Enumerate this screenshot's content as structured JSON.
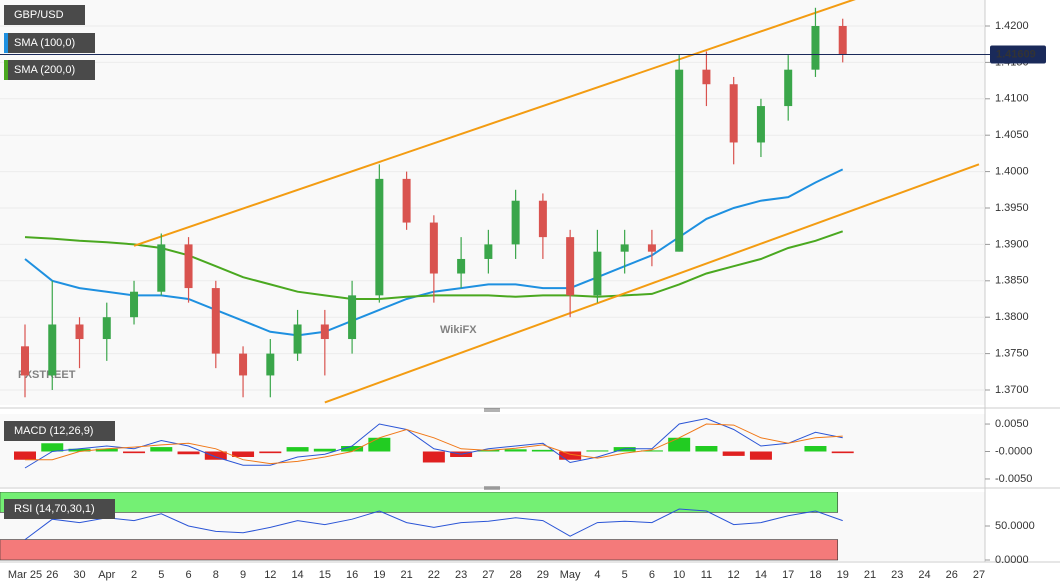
{
  "chart_data": [
    {
      "type": "candlestick",
      "title": "GBP/USD",
      "categories": [
        "Mar 25",
        "26",
        "30",
        "Apr",
        "2",
        "5",
        "6",
        "8",
        "9",
        "12",
        "14",
        "15",
        "16",
        "19",
        "21",
        "22",
        "23",
        "27",
        "28",
        "29",
        "May",
        "4",
        "5",
        "6",
        "10",
        "11",
        "12",
        "14",
        "17",
        "18",
        "19",
        "21",
        "23",
        "24",
        "26",
        "27"
      ],
      "open": [
        1.376,
        1.372,
        1.379,
        1.377,
        1.38,
        1.3835,
        1.39,
        1.384,
        1.375,
        1.372,
        1.375,
        1.379,
        1.377,
        1.383,
        1.399,
        1.393,
        1.386,
        1.388,
        1.39,
        1.396,
        1.391,
        1.383,
        1.389,
        1.39,
        1.389,
        1.414,
        1.412,
        1.404,
        1.409,
        1.414,
        1.42,
        null,
        null,
        null,
        null,
        null
      ],
      "high": [
        1.379,
        1.385,
        1.38,
        1.382,
        1.385,
        1.3915,
        1.391,
        1.385,
        1.376,
        1.377,
        1.381,
        1.381,
        1.385,
        1.401,
        1.4,
        1.394,
        1.391,
        1.392,
        1.3975,
        1.397,
        1.392,
        1.392,
        1.392,
        1.392,
        1.416,
        1.4165,
        1.413,
        1.41,
        1.416,
        1.4225,
        1.421,
        null,
        null,
        null,
        null,
        null
      ],
      "low": [
        1.369,
        1.37,
        1.373,
        1.374,
        1.379,
        1.383,
        1.382,
        1.373,
        1.369,
        1.369,
        1.374,
        1.372,
        1.375,
        1.382,
        1.392,
        1.382,
        1.384,
        1.386,
        1.388,
        1.388,
        1.38,
        1.382,
        1.386,
        1.387,
        1.389,
        1.409,
        1.401,
        1.402,
        1.407,
        1.413,
        1.415,
        null,
        null,
        null,
        null,
        null
      ],
      "close": [
        1.372,
        1.379,
        1.377,
        1.38,
        1.3835,
        1.39,
        1.384,
        1.375,
        1.372,
        1.375,
        1.379,
        1.377,
        1.383,
        1.399,
        1.393,
        1.386,
        1.388,
        1.39,
        1.396,
        1.391,
        1.383,
        1.389,
        1.39,
        1.389,
        1.414,
        1.412,
        1.404,
        1.409,
        1.414,
        1.42,
        1.4161,
        null,
        null,
        null,
        null,
        null
      ],
      "up_color": "#3aa64a",
      "down_color": "#d9534f",
      "series": [
        {
          "name": "SMA (100,0)",
          "color": "#1e90e0",
          "values": [
            1.388,
            1.385,
            1.384,
            1.3835,
            1.383,
            1.383,
            1.3825,
            1.381,
            1.3795,
            1.378,
            1.3775,
            1.378,
            1.3795,
            1.381,
            1.3825,
            1.3835,
            1.384,
            1.3845,
            1.3845,
            1.384,
            1.384,
            1.3855,
            1.387,
            1.3885,
            1.391,
            1.3935,
            1.395,
            1.396,
            1.3965,
            1.3985,
            1.4003,
            null,
            null,
            null,
            null,
            null
          ]
        },
        {
          "name": "SMA (200,0)",
          "color": "#4aa820",
          "values": [
            1.391,
            1.3908,
            1.3905,
            1.3903,
            1.39,
            1.3895,
            1.3885,
            1.387,
            1.3855,
            1.3845,
            1.3835,
            1.383,
            1.3825,
            1.3825,
            1.3828,
            1.383,
            1.383,
            1.383,
            1.3828,
            1.383,
            1.383,
            1.3828,
            1.383,
            1.3832,
            1.3845,
            1.386,
            1.387,
            1.388,
            1.3895,
            1.3905,
            1.3918,
            null,
            null,
            null,
            null,
            null
          ]
        }
      ],
      "trendlines": [
        {
          "color": "#f39c12",
          "x": [
            4,
            35
          ],
          "y": [
            1.3898,
            1.4295
          ]
        },
        {
          "color": "#f39c12",
          "x": [
            11,
            35
          ],
          "y": [
            1.3683,
            1.401
          ]
        }
      ],
      "last_price": 1.41609,
      "watermarks": [
        "FXSTREET",
        "WikiFX"
      ],
      "ylim": [
        1.36794,
        1.42357
      ],
      "yticks": [
        {
          "value": 1.37,
          "label": "1.3700"
        },
        {
          "value": 1.375,
          "label": "1.3750"
        },
        {
          "value": 1.38,
          "label": "1.3800"
        },
        {
          "value": 1.385,
          "label": "1.3850"
        },
        {
          "value": 1.39,
          "label": "1.3900"
        },
        {
          "value": 1.395,
          "label": "1.3950"
        },
        {
          "value": 1.4,
          "label": "1.4000"
        },
        {
          "value": 1.405,
          "label": "1.4050"
        },
        {
          "value": 1.41,
          "label": "1.4100"
        },
        {
          "value": 1.415,
          "label": "1.4150"
        },
        {
          "value": 1.42,
          "label": "1.4200"
        }
      ]
    },
    {
      "type": "combo",
      "title": "MACD (12,26,9)",
      "series": [
        {
          "color": "#2b55d6",
          "values": [
            -0.003,
            0.0,
            0.0005,
            0.001,
            0.0005,
            0.002,
            0.001,
            -0.001,
            -0.0025,
            -0.0025,
            -0.001,
            -0.0005,
            0.001,
            0.005,
            0.004,
            0.0005,
            -0.0005,
            0.0005,
            0.001,
            0.0015,
            -0.002,
            -0.001,
            0.0005,
            0.0005,
            0.005,
            0.006,
            0.004,
            0.001,
            0.0015,
            0.0035,
            0.0025,
            null,
            null,
            null,
            null,
            null
          ]
        },
        {
          "color": "#f07818",
          "values": [
            -0.0015,
            -0.0015,
            0.0,
            0.0005,
            0.0008,
            0.0012,
            0.0015,
            0.0005,
            -0.0015,
            -0.0022,
            -0.0018,
            -0.001,
            0.0,
            0.0025,
            0.004,
            0.0025,
            0.0005,
            0.0002,
            0.0006,
            0.0012,
            -0.0005,
            -0.0012,
            -0.0003,
            0.0003,
            0.0025,
            0.005,
            0.0048,
            0.0025,
            0.0015,
            0.0025,
            0.0028,
            null,
            null,
            null,
            null,
            null
          ]
        }
      ],
      "histogram": [
        -0.0015,
        0.0015,
        0.0005,
        0.0005,
        -0.0003,
        0.0008,
        -0.0005,
        -0.0015,
        -0.001,
        -0.0003,
        0.0008,
        0.0005,
        0.001,
        0.0025,
        0.0,
        -0.002,
        -0.001,
        0.0003,
        0.0004,
        0.0003,
        -0.0015,
        0.0002,
        0.0008,
        0.0002,
        0.0025,
        0.001,
        -0.0008,
        -0.0015,
        0.0,
        0.001,
        -0.0003,
        null,
        null,
        null,
        null,
        null
      ],
      "up_color": "#22cc22",
      "down_color": "#e02020",
      "ylim": [
        -0.0061,
        0.0061
      ],
      "yticks": [
        {
          "value": 0.005,
          "label": "0.0050"
        },
        {
          "value": 0,
          "label": "-0.0000"
        },
        {
          "value": -0.005,
          "label": "-0.0050"
        }
      ]
    },
    {
      "type": "line",
      "title": "RSI (14,70,30,1)",
      "color": "#2b55d6",
      "values": [
        30,
        60,
        55,
        62,
        58,
        68,
        50,
        42,
        40,
        48,
        58,
        52,
        60,
        72,
        55,
        48,
        55,
        57,
        62,
        58,
        35,
        55,
        57,
        55,
        75,
        72,
        52,
        55,
        65,
        72,
        58,
        null,
        null,
        null,
        null,
        null
      ],
      "bands": [
        {
          "from": 70,
          "to": 100,
          "color": "#74f074"
        },
        {
          "from": 0,
          "to": 30,
          "color": "#f47a7a"
        }
      ],
      "ylim": [
        0,
        100
      ],
      "yticks": [
        {
          "value": 50,
          "label": "50.0000"
        },
        {
          "value": 0,
          "label": "0.0000"
        }
      ]
    }
  ]
}
